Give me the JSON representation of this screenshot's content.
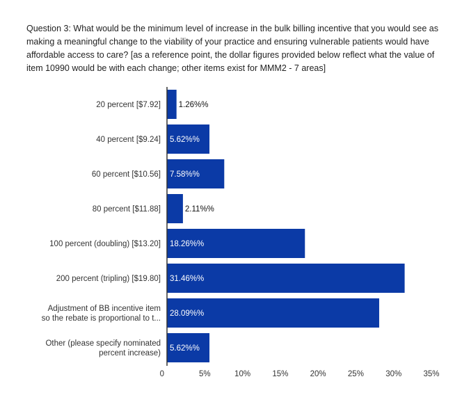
{
  "chart_data": {
    "type": "bar",
    "orientation": "horizontal",
    "title": "Question 3: What would be the minimum level of increase in the bulk billing incentive that you would see as making a meaningful change to the viability of your practice and ensuring vulnerable patients would have affordable access to care? [as a reference point, the dollar figures provided below reflect what the value of item 10990 would be with each change; other items exist for MMM2 - 7 areas]",
    "categories": [
      [
        "20 percent [$7.92]"
      ],
      [
        "40 percent [$9.24]"
      ],
      [
        "60 percent [$10.56]"
      ],
      [
        "80 percent [$11.88]"
      ],
      [
        "100 percent (doubling) [$13.20]"
      ],
      [
        "200 percent (tripling) [$19.80]"
      ],
      [
        "Adjustment of BB incentive item",
        "so the rebate is proportional to t..."
      ],
      [
        "Other (please specify nominated",
        "percent increase)"
      ]
    ],
    "values": [
      1.26,
      5.62,
      7.58,
      2.11,
      18.26,
      31.46,
      28.09,
      5.62
    ],
    "data_labels": [
      "1.26%%",
      "5.62%%",
      "7.58%%",
      "2.11%%",
      "18.26%%",
      "31.46%%",
      "28.09%%",
      "5.62%%"
    ],
    "x_ticks": [
      "0",
      "5%",
      "10%",
      "15%",
      "20%",
      "25%",
      "30%",
      "35%"
    ],
    "xlim": [
      0,
      35
    ],
    "bar_color": "#0b3aa6",
    "grid": false
  }
}
